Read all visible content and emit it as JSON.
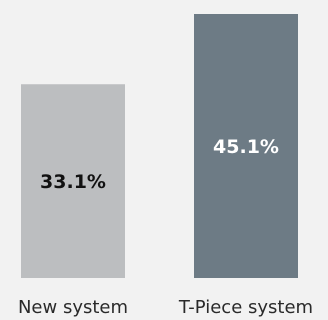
{
  "chart_data": {
    "type": "bar",
    "categories": [
      "New system",
      "T-Piece system"
    ],
    "values": [
      33.1,
      45.1
    ],
    "value_labels": [
      "33.1%",
      "45.1%"
    ],
    "ylim": [
      0,
      45.1
    ],
    "grid": false,
    "title": "",
    "xlabel": "",
    "ylabel": ""
  },
  "colors": {
    "background": "#f2f2f2",
    "bars": [
      "#bcbec0",
      "#6d7b85"
    ],
    "value_label_text": [
      "#111111",
      "#ffffff"
    ],
    "category_text": "#2a2a2a"
  }
}
